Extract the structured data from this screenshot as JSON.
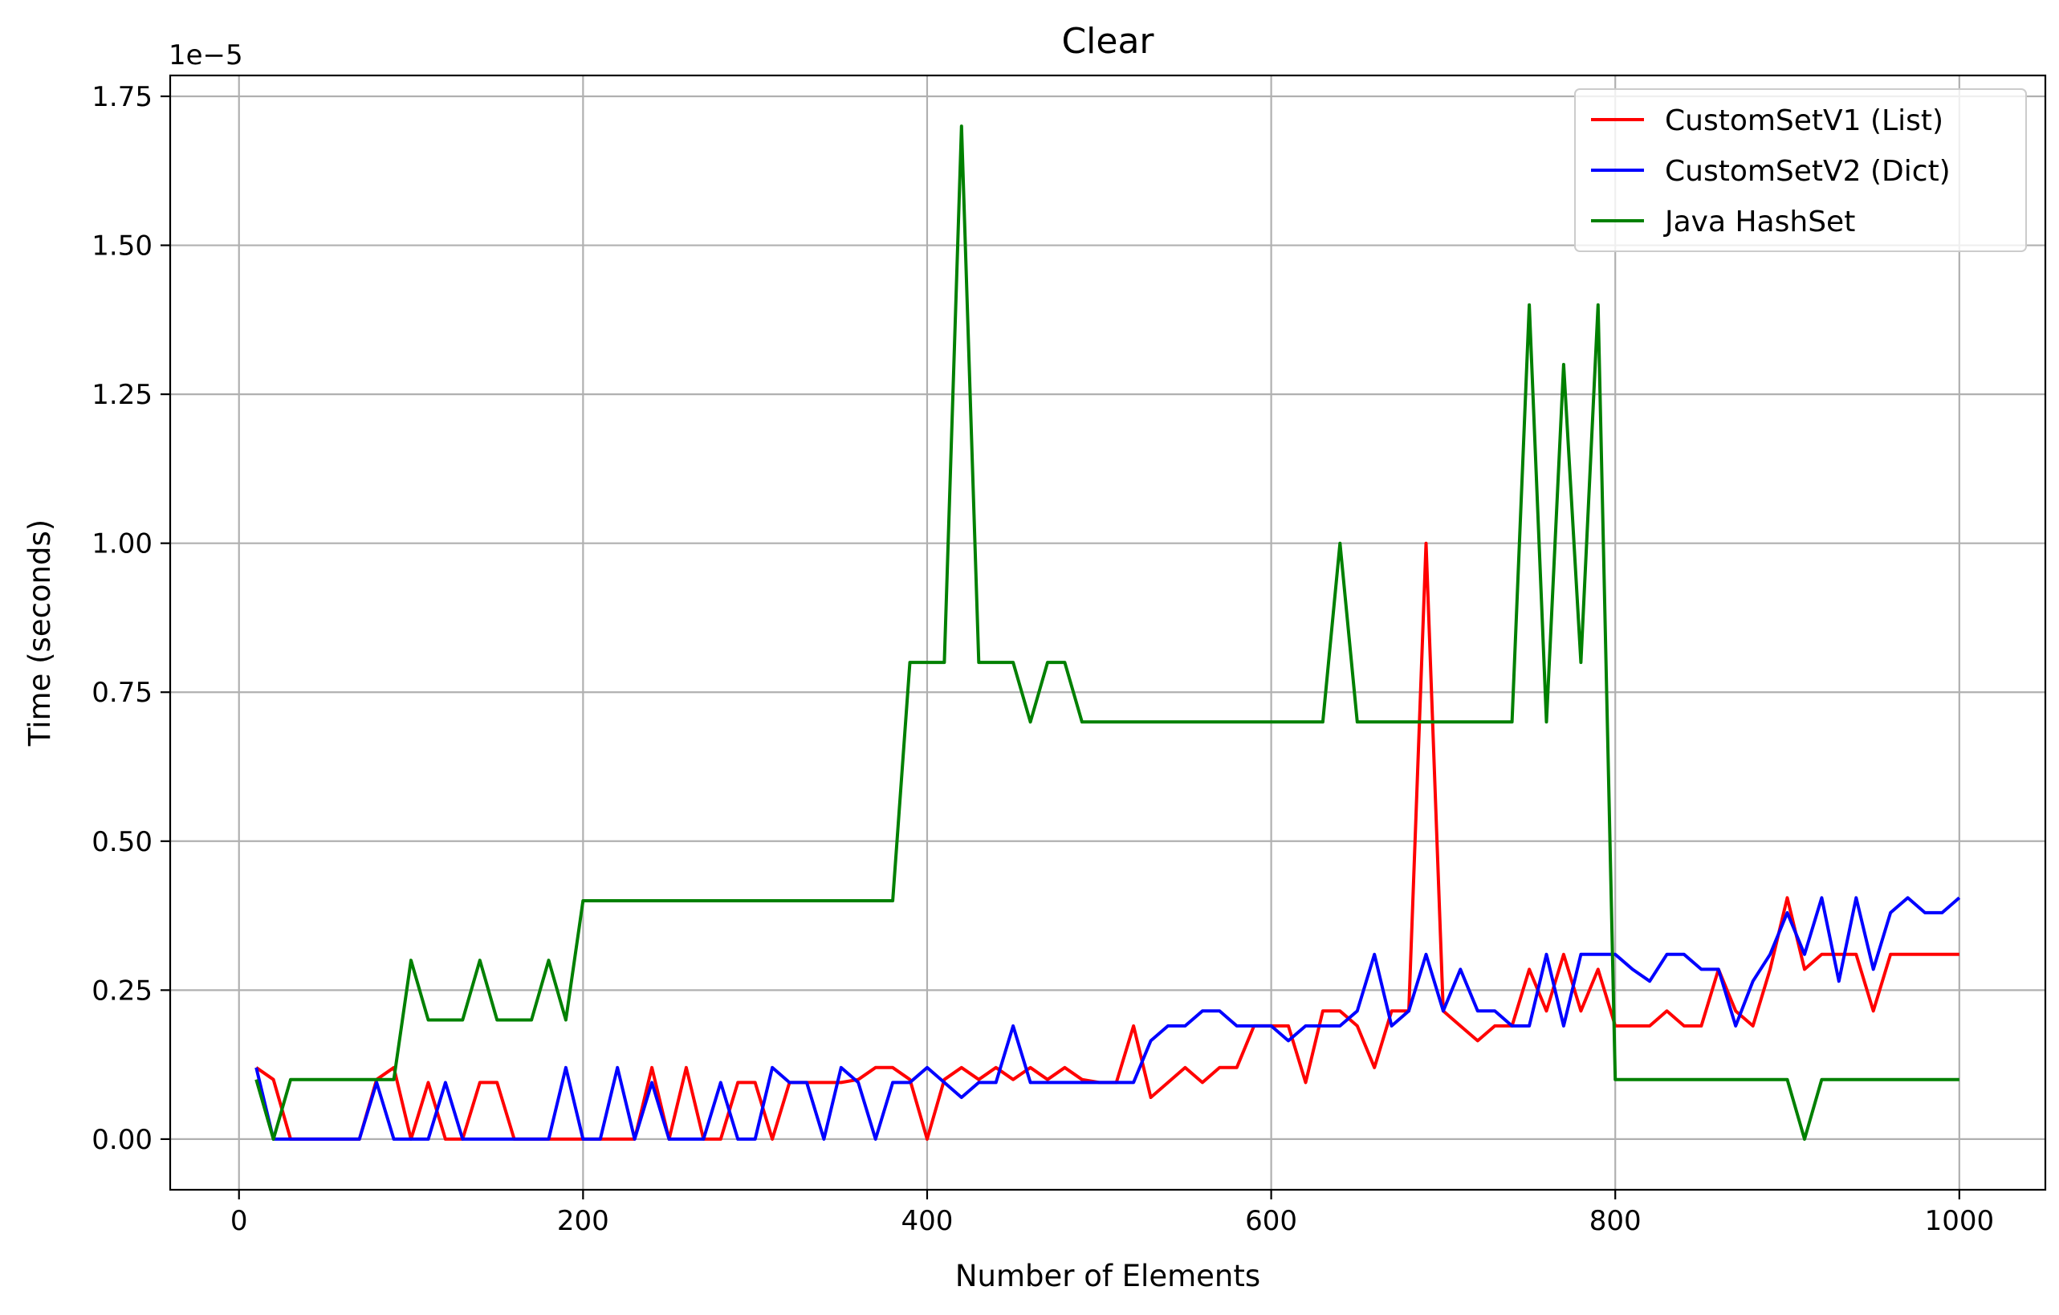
{
  "chart_data": {
    "type": "line",
    "title": "Clear",
    "xlabel": "Number of Elements",
    "ylabel": "Time (seconds)",
    "y_offset_label": "1e−5",
    "y_multiplier": 1e-05,
    "xlim": [
      -40,
      1050
    ],
    "ylim": [
      -0.085,
      1.785
    ],
    "xticks": [
      0,
      200,
      400,
      600,
      800,
      1000
    ],
    "xtick_labels": [
      "0",
      "200",
      "400",
      "600",
      "800",
      "1000"
    ],
    "yticks": [
      0,
      0.25,
      0.5,
      0.75,
      1.0,
      1.25,
      1.5,
      1.75
    ],
    "ytick_labels": [
      "0.00",
      "0.25",
      "0.50",
      "0.75",
      "1.00",
      "1.25",
      "1.50",
      "1.75"
    ],
    "grid": true,
    "legend_position": "top-right",
    "x": [
      10,
      20,
      30,
      40,
      50,
      60,
      70,
      80,
      90,
      100,
      110,
      120,
      130,
      140,
      150,
      160,
      170,
      180,
      190,
      200,
      210,
      220,
      230,
      240,
      250,
      260,
      270,
      280,
      290,
      300,
      310,
      320,
      330,
      340,
      350,
      360,
      370,
      380,
      390,
      400,
      410,
      420,
      430,
      440,
      450,
      460,
      470,
      480,
      490,
      500,
      510,
      520,
      530,
      540,
      550,
      560,
      570,
      580,
      590,
      600,
      610,
      620,
      630,
      640,
      650,
      660,
      670,
      680,
      690,
      700,
      710,
      720,
      730,
      740,
      750,
      760,
      770,
      780,
      790,
      800,
      810,
      820,
      830,
      840,
      850,
      860,
      870,
      880,
      890,
      900,
      910,
      920,
      930,
      940,
      950,
      960,
      970,
      980,
      990,
      1000
    ],
    "series": [
      {
        "name": "CustomSetV1 (List)",
        "color": "#ff0000",
        "values": [
          0.12,
          0.1,
          0,
          0,
          0,
          0,
          0,
          0.1,
          0.12,
          0,
          0.095,
          0,
          0,
          0.095,
          0.095,
          0,
          0,
          0,
          0,
          0,
          0,
          0,
          0,
          0.12,
          0,
          0.12,
          0,
          0,
          0.095,
          0.095,
          0,
          0.095,
          0.095,
          0.095,
          0.095,
          0.1,
          0.12,
          0.12,
          0.1,
          0,
          0.1,
          0.12,
          0.1,
          0.12,
          0.1,
          0.12,
          0.1,
          0.12,
          0.1,
          0.095,
          0.095,
          0.19,
          0.07,
          0.095,
          0.12,
          0.095,
          0.12,
          0.12,
          0.19,
          0.19,
          0.19,
          0.095,
          0.215,
          0.215,
          0.19,
          0.12,
          0.215,
          0.215,
          1.0,
          0.215,
          0.19,
          0.165,
          0.19,
          0.19,
          0.285,
          0.215,
          0.31,
          0.215,
          0.285,
          0.19,
          0.19,
          0.19,
          0.215,
          0.19,
          0.19,
          0.285,
          0.215,
          0.19,
          0.285,
          0.405,
          0.285,
          0.31,
          0.31,
          0.31,
          0.215,
          0.31,
          0.31,
          0.31,
          0.31,
          0.31
        ]
      },
      {
        "name": "CustomSetV2 (Dict)",
        "color": "#0000ff",
        "values": [
          0.12,
          0,
          0,
          0,
          0,
          0,
          0,
          0.095,
          0,
          0,
          0,
          0.095,
          0,
          0,
          0,
          0,
          0,
          0,
          0.12,
          0,
          0,
          0.12,
          0,
          0.095,
          0,
          0,
          0,
          0.095,
          0,
          0,
          0.12,
          0.095,
          0.095,
          0,
          0.12,
          0.095,
          0,
          0.095,
          0.095,
          0.12,
          0.095,
          0.07,
          0.095,
          0.095,
          0.19,
          0.095,
          0.095,
          0.095,
          0.095,
          0.095,
          0.095,
          0.095,
          0.165,
          0.19,
          0.19,
          0.215,
          0.215,
          0.19,
          0.19,
          0.19,
          0.165,
          0.19,
          0.19,
          0.19,
          0.215,
          0.31,
          0.19,
          0.215,
          0.31,
          0.215,
          0.285,
          0.215,
          0.215,
          0.19,
          0.19,
          0.31,
          0.19,
          0.31,
          0.31,
          0.31,
          0.285,
          0.265,
          0.31,
          0.31,
          0.285,
          0.285,
          0.19,
          0.265,
          0.31,
          0.38,
          0.31,
          0.405,
          0.265,
          0.405,
          0.285,
          0.38,
          0.405,
          0.38,
          0.38,
          0.405
        ]
      },
      {
        "name": "Java HashSet",
        "color": "#008000",
        "values": [
          0.1,
          0,
          0.1,
          0.1,
          0.1,
          0.1,
          0.1,
          0.1,
          0.1,
          0.3,
          0.2,
          0.2,
          0.2,
          0.3,
          0.2,
          0.2,
          0.2,
          0.3,
          0.2,
          0.4,
          0.4,
          0.4,
          0.4,
          0.4,
          0.4,
          0.4,
          0.4,
          0.4,
          0.4,
          0.4,
          0.4,
          0.4,
          0.4,
          0.4,
          0.4,
          0.4,
          0.4,
          0.4,
          0.8,
          0.8,
          0.8,
          1.7,
          0.8,
          0.8,
          0.8,
          0.7,
          0.8,
          0.8,
          0.7,
          0.7,
          0.7,
          0.7,
          0.7,
          0.7,
          0.7,
          0.7,
          0.7,
          0.7,
          0.7,
          0.7,
          0.7,
          0.7,
          0.7,
          1.0,
          0.7,
          0.7,
          0.7,
          0.7,
          0.7,
          0.7,
          0.7,
          0.7,
          0.7,
          0.7,
          1.4,
          0.7,
          1.3,
          0.8,
          1.4,
          0.1,
          0.1,
          0.1,
          0.1,
          0.1,
          0.1,
          0.1,
          0.1,
          0.1,
          0.1,
          0.1,
          0,
          0.1,
          0.1,
          0.1,
          0.1,
          0.1,
          0.1,
          0.1,
          0.1,
          0.1
        ]
      }
    ]
  }
}
